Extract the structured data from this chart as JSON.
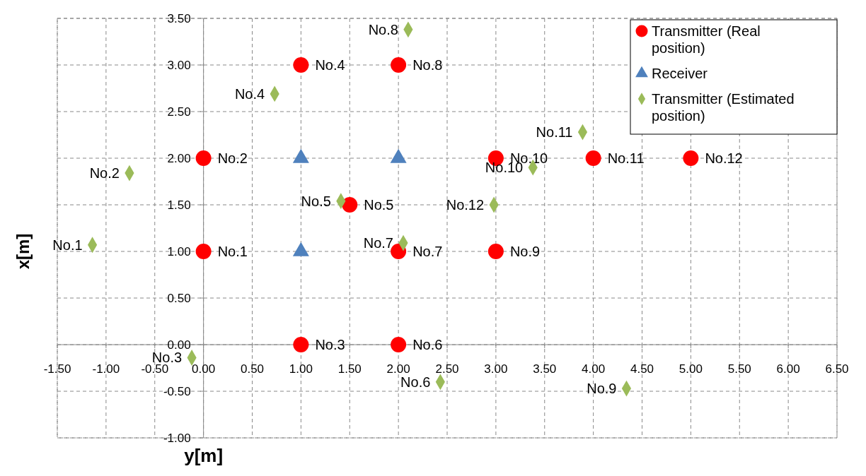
{
  "chart_data": {
    "type": "scatter",
    "xlabel": "y[m]",
    "ylabel": "x[m]",
    "xlim": [
      -1.5,
      6.5
    ],
    "ylim": [
      -1,
      3.5
    ],
    "xticks": [
      {
        "value": -1.5,
        "label": "-1.50"
      },
      {
        "value": -1,
        "label": "-1.00"
      },
      {
        "value": -0.5,
        "label": "-0.50"
      },
      {
        "value": 0,
        "label": "0.00"
      },
      {
        "value": 0.5,
        "label": "0.50"
      },
      {
        "value": 1,
        "label": "1.00"
      },
      {
        "value": 1.5,
        "label": "1.50"
      },
      {
        "value": 2,
        "label": "2.00"
      },
      {
        "value": 2.5,
        "label": "2.50"
      },
      {
        "value": 3,
        "label": "3.00"
      },
      {
        "value": 3.5,
        "label": "3.50"
      },
      {
        "value": 4,
        "label": "4.00"
      },
      {
        "value": 4.5,
        "label": "4.50"
      },
      {
        "value": 5,
        "label": "5.00"
      },
      {
        "value": 5.5,
        "label": "5.50"
      },
      {
        "value": 6,
        "label": "6.00"
      },
      {
        "value": 6.5,
        "label": "6.50"
      }
    ],
    "yticks": [
      {
        "value": -1,
        "label": "-1.00"
      },
      {
        "value": -0.5,
        "label": "-0.50"
      },
      {
        "value": 0,
        "label": "0.00"
      },
      {
        "value": 0.5,
        "label": "0.50"
      },
      {
        "value": 1,
        "label": "1.00"
      },
      {
        "value": 1.5,
        "label": "1.50"
      },
      {
        "value": 2,
        "label": "2.00"
      },
      {
        "value": 2.5,
        "label": "2.50"
      },
      {
        "value": 3,
        "label": "3.00"
      },
      {
        "value": 3.5,
        "label": "3.50"
      }
    ],
    "grid": true,
    "legend": "top right",
    "series": [
      {
        "name": "Transmitter (Real position)",
        "color": "#ff0000",
        "marker": "circle",
        "x": [
          0,
          0,
          1,
          1,
          1.5,
          2,
          2,
          2,
          3,
          3,
          4,
          5
        ],
        "values": [
          1,
          2,
          0,
          3,
          1.5,
          0,
          1,
          3,
          1,
          2,
          2,
          2
        ],
        "value_labels": [
          "No.1",
          "No.2",
          "No.3",
          "No.4",
          "No.5",
          "No.6",
          "No.7",
          "No.8",
          "No.9",
          "No.10",
          "No.11",
          "No.12"
        ]
      },
      {
        "name": "Receiver",
        "color": "#4f81bd",
        "marker": "triangle",
        "x": [
          1,
          2,
          1
        ],
        "values": [
          2,
          2,
          1
        ]
      },
      {
        "name": "Transmitter (Estimated position)",
        "color": "#9bbb59",
        "marker": "diamond",
        "x": [
          -1.14,
          -0.76,
          -0.12,
          0.73,
          1.41,
          2.43,
          2.05,
          2.1,
          4.34,
          3.38,
          3.89,
          2.98
        ],
        "values": [
          1.07,
          1.84,
          -0.14,
          2.69,
          1.54,
          -0.4,
          1.09,
          3.38,
          -0.47,
          1.9,
          2.28,
          1.5
        ],
        "value_labels": [
          "No.1",
          "No.2",
          "No.3",
          "No.4",
          "No.5",
          "No.6",
          "No.7",
          "No.8",
          "No.9",
          "No.10",
          "No.11",
          "No.12"
        ]
      }
    ]
  }
}
